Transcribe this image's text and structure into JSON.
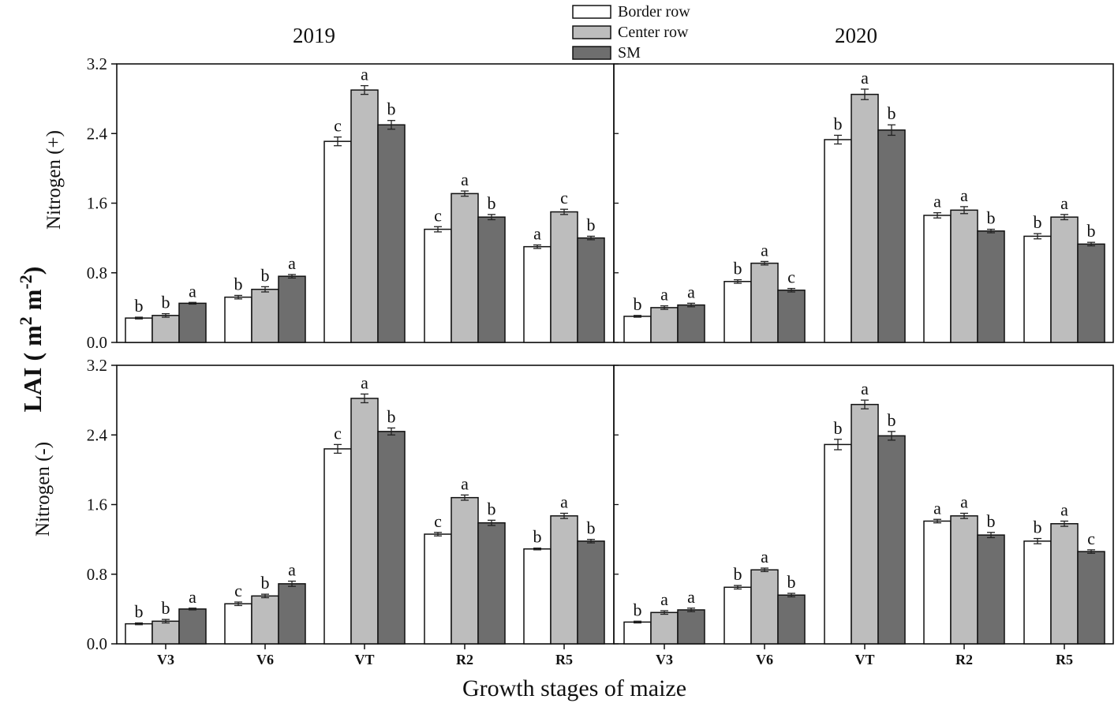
{
  "chart_data": {
    "type": "bar",
    "xlabel": "Growth stages of maize",
    "ylabel": "LAI ( m",
    "ylabel_sup1": "2",
    "ylabel_mid": " m",
    "ylabel_sup2": "-2",
    "ylabel_end": ")",
    "ylim": [
      0,
      3.2
    ],
    "yticks": [
      "0.0",
      "0.8",
      "1.6",
      "2.4",
      "3.2"
    ],
    "categories": [
      "V3",
      "V6",
      "VT",
      "R2",
      "R5"
    ],
    "columns": [
      "2019",
      "2020"
    ],
    "rows": [
      "Nitrogen (+)",
      "Nitrogen (-)"
    ],
    "legend": [
      {
        "name": "Border row",
        "color": "#ffffff"
      },
      {
        "name": "Center row",
        "color": "#bdbdbd"
      },
      {
        "name": "SM",
        "color": "#6e6e6e"
      }
    ],
    "panels": [
      {
        "year": "2019",
        "row": "Nitrogen (+)",
        "series": [
          {
            "name": "Border row",
            "values": [
              0.28,
              0.52,
              2.31,
              1.3,
              1.1
            ],
            "err": [
              0.01,
              0.02,
              0.05,
              0.03,
              0.02
            ],
            "letters": [
              "b",
              "b",
              "c",
              "c",
              "a"
            ]
          },
          {
            "name": "Center row",
            "values": [
              0.31,
              0.61,
              2.9,
              1.71,
              1.5
            ],
            "err": [
              0.02,
              0.03,
              0.05,
              0.03,
              0.03
            ],
            "letters": [
              "b",
              "b",
              "a",
              "a",
              "c"
            ]
          },
          {
            "name": "SM",
            "values": [
              0.45,
              0.76,
              2.5,
              1.44,
              1.2
            ],
            "err": [
              0.01,
              0.02,
              0.05,
              0.03,
              0.02
            ],
            "letters": [
              "a",
              "a",
              "b",
              "b",
              "b"
            ]
          }
        ]
      },
      {
        "year": "2020",
        "row": "Nitrogen (+)",
        "series": [
          {
            "name": "Border row",
            "values": [
              0.3,
              0.7,
              2.33,
              1.46,
              1.22
            ],
            "err": [
              0.01,
              0.02,
              0.05,
              0.03,
              0.03
            ],
            "letters": [
              "b",
              "b",
              "b",
              "a",
              "b"
            ]
          },
          {
            "name": "Center row",
            "values": [
              0.4,
              0.91,
              2.85,
              1.52,
              1.44
            ],
            "err": [
              0.02,
              0.02,
              0.06,
              0.04,
              0.03
            ],
            "letters": [
              "a",
              "a",
              "a",
              "a",
              "a"
            ]
          },
          {
            "name": "SM",
            "values": [
              0.43,
              0.6,
              2.44,
              1.28,
              1.13
            ],
            "err": [
              0.02,
              0.02,
              0.06,
              0.02,
              0.02
            ],
            "letters": [
              "a",
              "c",
              "b",
              "b",
              "b"
            ]
          }
        ]
      },
      {
        "year": "2019",
        "row": "Nitrogen (-)",
        "series": [
          {
            "name": "Border row",
            "values": [
              0.23,
              0.46,
              2.24,
              1.26,
              1.09
            ],
            "err": [
              0.01,
              0.02,
              0.05,
              0.02,
              0.01
            ],
            "letters": [
              "b",
              "c",
              "c",
              "c",
              "b"
            ]
          },
          {
            "name": "Center row",
            "values": [
              0.26,
              0.55,
              2.82,
              1.68,
              1.47
            ],
            "err": [
              0.02,
              0.02,
              0.05,
              0.03,
              0.03
            ],
            "letters": [
              "b",
              "b",
              "a",
              "a",
              "a"
            ]
          },
          {
            "name": "SM",
            "values": [
              0.4,
              0.69,
              2.44,
              1.39,
              1.18
            ],
            "err": [
              0.01,
              0.03,
              0.04,
              0.03,
              0.02
            ],
            "letters": [
              "a",
              "a",
              "b",
              "b",
              "b"
            ]
          }
        ]
      },
      {
        "year": "2020",
        "row": "Nitrogen (-)",
        "series": [
          {
            "name": "Border row",
            "values": [
              0.25,
              0.65,
              2.29,
              1.41,
              1.18
            ],
            "err": [
              0.01,
              0.02,
              0.06,
              0.02,
              0.03
            ],
            "letters": [
              "b",
              "b",
              "b",
              "a",
              "b"
            ]
          },
          {
            "name": "Center row",
            "values": [
              0.36,
              0.85,
              2.75,
              1.47,
              1.38
            ],
            "err": [
              0.02,
              0.02,
              0.05,
              0.03,
              0.03
            ],
            "letters": [
              "a",
              "a",
              "a",
              "a",
              "a"
            ]
          },
          {
            "name": "SM",
            "values": [
              0.39,
              0.56,
              2.39,
              1.25,
              1.06
            ],
            "err": [
              0.02,
              0.02,
              0.05,
              0.03,
              0.02
            ],
            "letters": [
              "a",
              "b",
              "b",
              "b",
              "c"
            ]
          }
        ]
      }
    ]
  }
}
